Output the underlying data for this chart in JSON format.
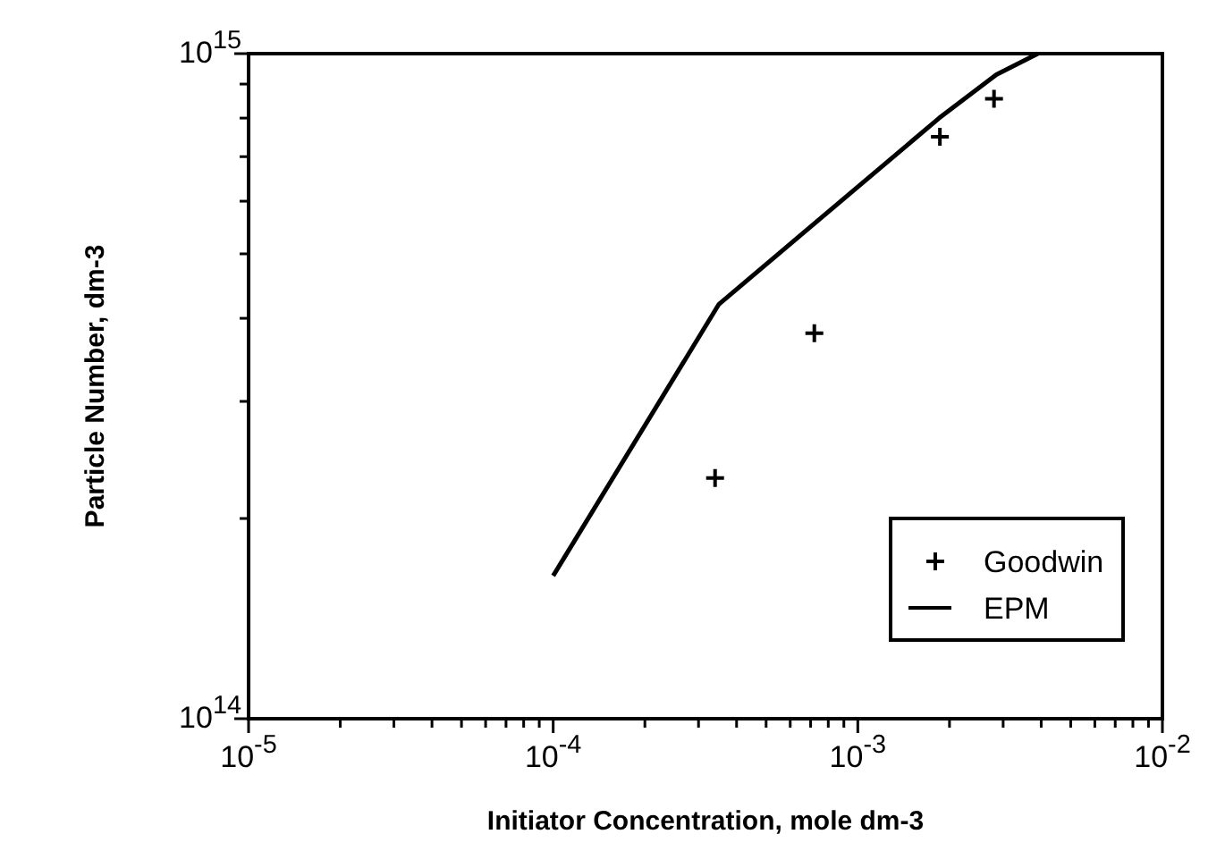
{
  "chart_data": {
    "type": "line",
    "xlabel": "Initiator Concentration, mole dm-3",
    "ylabel": "Particle Number, dm-3",
    "log": "xy",
    "xlim": [
      1e-05,
      0.01
    ],
    "ylim": [
      100000000000000,
      1000000000000000
    ],
    "xticks": [
      {
        "value": 1e-05,
        "label": "10$^{-5}$"
      },
      {
        "value": 2e-05,
        "label": null
      },
      {
        "value": 3e-05,
        "label": null
      },
      {
        "value": 4e-05,
        "label": null
      },
      {
        "value": 5e-05,
        "label": null
      },
      {
        "value": 6e-05,
        "label": null
      },
      {
        "value": 7e-05,
        "label": null
      },
      {
        "value": 8e-05,
        "label": null
      },
      {
        "value": 9e-05,
        "label": null
      },
      {
        "value": 0.0001,
        "label": "10$^{-4}$"
      },
      {
        "value": 0.0002,
        "label": null
      },
      {
        "value": 0.0003,
        "label": null
      },
      {
        "value": 0.0004,
        "label": null
      },
      {
        "value": 0.0005,
        "label": null
      },
      {
        "value": 0.0006,
        "label": null
      },
      {
        "value": 0.0007,
        "label": null
      },
      {
        "value": 0.0008,
        "label": null
      },
      {
        "value": 0.0009,
        "label": null
      },
      {
        "value": 0.001,
        "label": "10$^{-3}$"
      },
      {
        "value": 0.002,
        "label": null
      },
      {
        "value": 0.003,
        "label": null
      },
      {
        "value": 0.004,
        "label": null
      },
      {
        "value": 0.005,
        "label": null
      },
      {
        "value": 0.006,
        "label": null
      },
      {
        "value": 0.007,
        "label": null
      },
      {
        "value": 0.008,
        "label": null
      },
      {
        "value": 0.009,
        "label": null
      },
      {
        "value": 0.01,
        "label": "10$^{-2}$"
      }
    ],
    "yticks": [
      {
        "value": 100000000000000,
        "label": "10$^{14}$"
      },
      {
        "value": 200000000000000,
        "label": null
      },
      {
        "value": 300000000000000,
        "label": null
      },
      {
        "value": 400000000000000,
        "label": null
      },
      {
        "value": 500000000000000,
        "label": null
      },
      {
        "value": 600000000000000,
        "label": null
      },
      {
        "value": 700000000000000,
        "label": null
      },
      {
        "value": 800000000000000,
        "label": null
      },
      {
        "value": 900000000000000,
        "label": null
      },
      {
        "value": 1000000000000000,
        "label": "10$^{15}$"
      }
    ],
    "legend": "bottom right",
    "grid": false,
    "series": [
      {
        "name": "Goodwin",
        "type": "scatter",
        "marker": "cross",
        "color": "#000000",
        "x": [
          0.00034,
          0.00072,
          0.00186,
          0.0028
        ],
        "values": [
          230000000000000,
          380000000000000,
          750000000000000,
          855000000000000
        ]
      },
      {
        "name": "EPM",
        "marker": "none",
        "line_style": "solid",
        "color": "#000000",
        "x": [
          0.0001,
          0.00035,
          0.00185,
          0.00285,
          0.0039
        ],
        "values": [
          164000000000000,
          420000000000000,
          800000000000000,
          930000000000000,
          1000000000000000
        ]
      }
    ]
  }
}
